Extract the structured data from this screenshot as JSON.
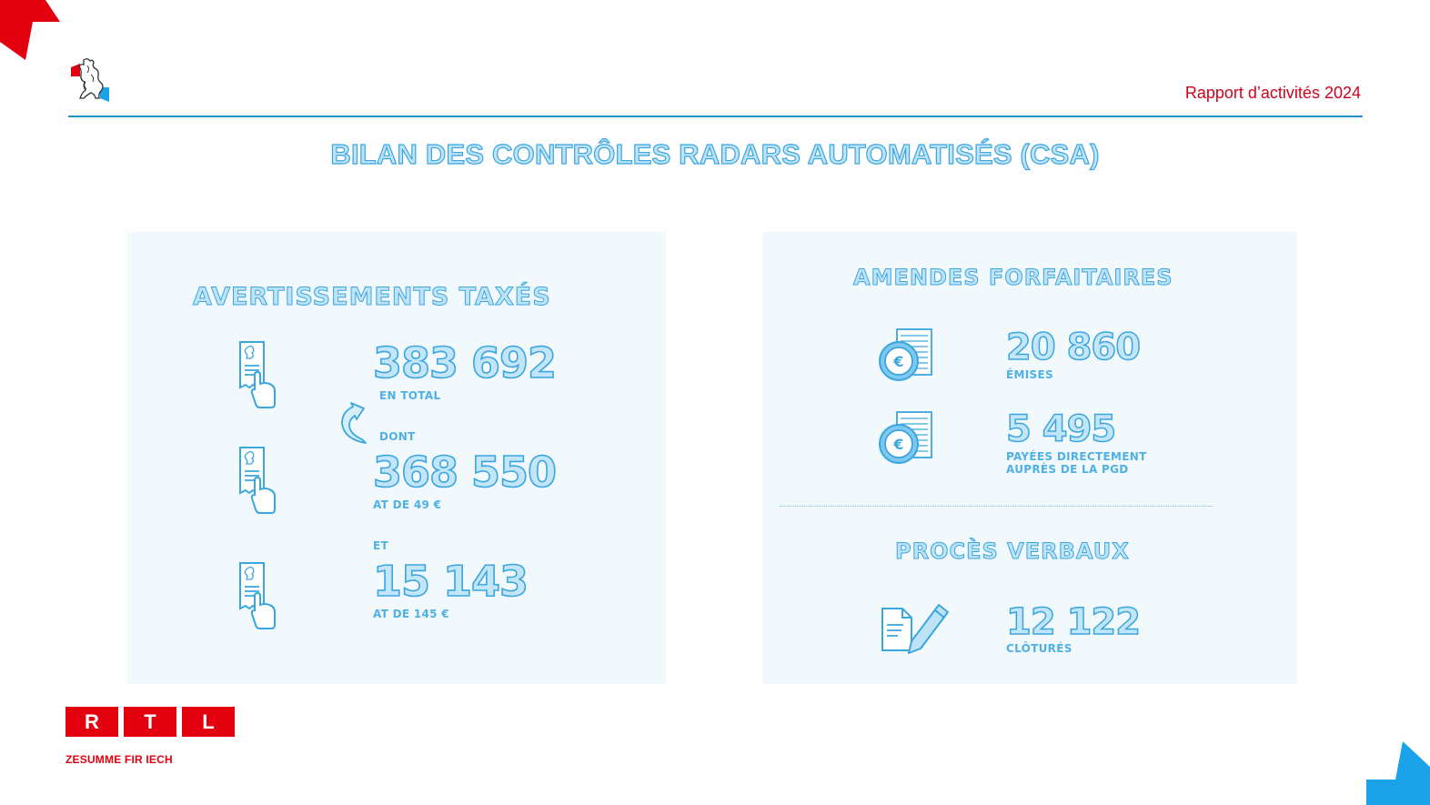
{
  "header": {
    "report_label": "Rapport d’activités 2024",
    "crest_icon": "luxembourg-lion-crest-icon"
  },
  "page_title": "BILAN DES CONTRÔLES RADARS AUTOMATISÉS (CSA)",
  "left_panel": {
    "heading": "AVERTISSEMENTS TAXÉS",
    "total": {
      "value": "383 692",
      "caption": "EN TOTAL"
    },
    "connector": "DONT",
    "item1": {
      "value": "368 550",
      "caption": "AT DE 49 €"
    },
    "connector2": "ET",
    "item2": {
      "value": "15 143",
      "caption": "AT DE 145 €"
    },
    "icon": "receipt-hand-icon",
    "arrow_icon": "curved-arrow-icon"
  },
  "right_panel": {
    "heading1": "AMENDES FORFAITAIRES",
    "emises": {
      "value": "20 860",
      "caption": "ÉMISES"
    },
    "payees": {
      "value": "5 495",
      "caption_line1": "PAYÉES DIRECTEMENT",
      "caption_line2": "AUPRÈS DE LA PGD"
    },
    "heading2": "PROCÈS VERBAUX",
    "clotures": {
      "value": "12 122",
      "caption": "CLÔTURÉS"
    },
    "euro_icon": "euro-coin-document-icon",
    "edit_icon": "document-pencil-icon"
  },
  "footer": {
    "logo_letters": [
      "R",
      "T",
      "L"
    ],
    "tagline": "ZESUMME FIR IECH"
  },
  "colors": {
    "accent_red": "#e3000f",
    "accent_blue": "#1e90d6",
    "text_outline": "#3aa6e0",
    "text_fill": "#c2e5f7",
    "panel_bg": "#f2f9fd"
  }
}
